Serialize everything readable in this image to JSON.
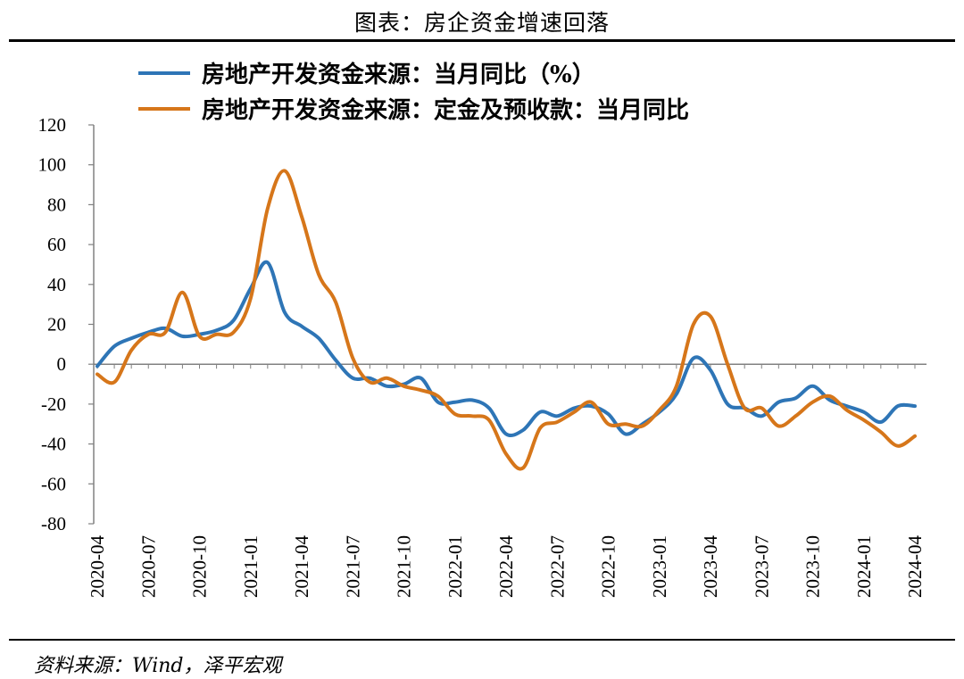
{
  "header": {
    "title": "图表：房企资金增速回落"
  },
  "footer": {
    "source": "资料来源：Wind，泽平宏观"
  },
  "chart_data": {
    "type": "line",
    "title": "图表：房企资金增速回落",
    "xlabel": "",
    "ylabel": "",
    "ylim": [
      -80,
      120
    ],
    "yticks": [
      120,
      100,
      80,
      60,
      40,
      20,
      0,
      -20,
      -40,
      -60,
      -80
    ],
    "xtick_labels": [
      "2020-04",
      "2020-07",
      "2020-10",
      "2021-01",
      "2021-04",
      "2021-07",
      "2021-10",
      "2022-01",
      "2022-04",
      "2022-07",
      "2022-10",
      "2023-01",
      "2023-04",
      "2023-07",
      "2023-10",
      "2024-01",
      "2024-04"
    ],
    "x": [
      "2020-04",
      "2020-05",
      "2020-06",
      "2020-07",
      "2020-08",
      "2020-09",
      "2020-10",
      "2020-11",
      "2020-12",
      "2021-01",
      "2021-02",
      "2021-03",
      "2021-04",
      "2021-05",
      "2021-06",
      "2021-07",
      "2021-08",
      "2021-09",
      "2021-10",
      "2021-11",
      "2021-12",
      "2022-01",
      "2022-02",
      "2022-03",
      "2022-04",
      "2022-05",
      "2022-06",
      "2022-07",
      "2022-08",
      "2022-09",
      "2022-10",
      "2022-11",
      "2022-12",
      "2023-01",
      "2023-02",
      "2023-03",
      "2023-04",
      "2023-05",
      "2023-06",
      "2023-07",
      "2023-08",
      "2023-09",
      "2023-10",
      "2023-11",
      "2023-12",
      "2024-01",
      "2024-02",
      "2024-03",
      "2024-04"
    ],
    "grid": false,
    "legend_position": "top-left",
    "series": [
      {
        "name": "房地产开发资金来源：当月同比（%）",
        "color": "#2E75B6",
        "values": [
          -1,
          9,
          13,
          16,
          18,
          14,
          15,
          17,
          22,
          38,
          51,
          26,
          19,
          13,
          2,
          -7,
          -7,
          -11,
          -10,
          -7,
          -19,
          -19,
          -18,
          -22,
          -35,
          -33,
          -24,
          -26,
          -22,
          -21,
          -25,
          -35,
          -30,
          -24,
          -15,
          3,
          -3,
          -20,
          -22,
          -26,
          -19,
          -17,
          -11,
          -18,
          -21,
          -24,
          -29,
          -21,
          -21
        ]
      },
      {
        "name": "房地产开发资金来源：定金及预收款：当月同比",
        "color": "#D6761A",
        "values": [
          -5,
          -9,
          7,
          15,
          16,
          36,
          14,
          15,
          16,
          33,
          78,
          97,
          74,
          45,
          31,
          3,
          -9,
          -7,
          -11,
          -13,
          -16,
          -25,
          -26,
          -28,
          -45,
          -52,
          -32,
          -29,
          -24,
          -19,
          -30,
          -30,
          -31,
          -23,
          -11,
          20,
          24,
          0,
          -22,
          -22,
          -31,
          -26,
          -19,
          -16,
          -23,
          -28,
          -34,
          -41,
          -36
        ]
      }
    ]
  }
}
